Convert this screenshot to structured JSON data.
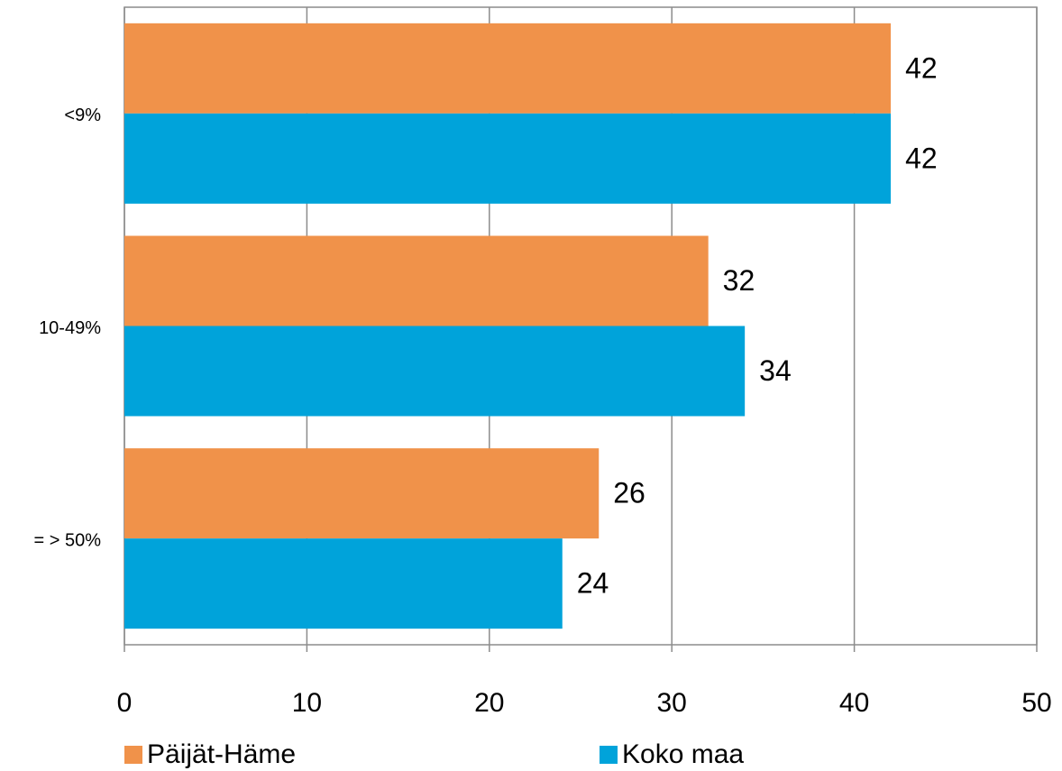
{
  "chart_data": {
    "type": "bar",
    "orientation": "horizontal",
    "categories": [
      "<9%",
      "10-49%",
      "= > 50%"
    ],
    "series": [
      {
        "name": "Päijät-Häme",
        "color": "#f0924a",
        "values": [
          42,
          32,
          26
        ]
      },
      {
        "name": "Koko maa",
        "color": "#00a3da",
        "values": [
          42,
          34,
          24
        ]
      }
    ],
    "xlim": [
      0,
      50
    ],
    "xticks": [
      0,
      10,
      20,
      30,
      40,
      50
    ],
    "grid": true,
    "legend": "bottom"
  }
}
